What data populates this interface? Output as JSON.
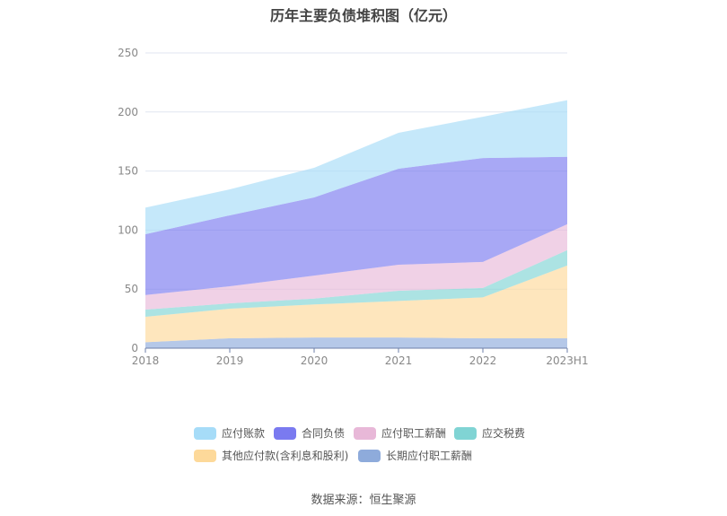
{
  "title": "历年主要负债堆积图（亿元）",
  "source": "数据来源：恒生聚源",
  "chart_data": {
    "type": "area",
    "stacked": true,
    "title": "历年主要负债堆积图（亿元）",
    "xlabel": "",
    "ylabel": "",
    "categories": [
      "2018",
      "2019",
      "2020",
      "2021",
      "2022",
      "2023H1"
    ],
    "ylim": [
      0,
      250
    ],
    "yticks": [
      0,
      50,
      100,
      150,
      200,
      250
    ],
    "grid": true,
    "legend_position": "bottom",
    "series": [
      {
        "name": "长期应付职工薪酬",
        "color": "#8eabdb",
        "values": [
          5,
          8.4,
          9,
          9,
          8.4,
          8.4
        ]
      },
      {
        "name": "其他应付款(含利息和股利)",
        "color": "#fdd99a",
        "values": [
          21.6,
          25,
          28,
          31,
          34.6,
          61.6
        ]
      },
      {
        "name": "应交税费",
        "color": "#80d4d4",
        "values": [
          6.1,
          4.6,
          5,
          8.6,
          8,
          13
        ]
      },
      {
        "name": "应付职工薪酬",
        "color": "#e8b8d8",
        "values": [
          12.3,
          14.4,
          19.5,
          22.1,
          22,
          22
        ]
      },
      {
        "name": "合同负债",
        "color": "#7a7af0",
        "values": [
          51.5,
          60.1,
          66.2,
          81.3,
          88,
          57
        ]
      },
      {
        "name": "应付账款",
        "color": "#a6dcf8",
        "values": [
          22.5,
          22,
          25,
          30.4,
          35,
          48
        ]
      }
    ],
    "legend_order": [
      "应付账款",
      "合同负债",
      "应付职工薪酬",
      "应交税费",
      "其他应付款(含利息和股利)",
      "长期应付职工薪酬"
    ]
  }
}
